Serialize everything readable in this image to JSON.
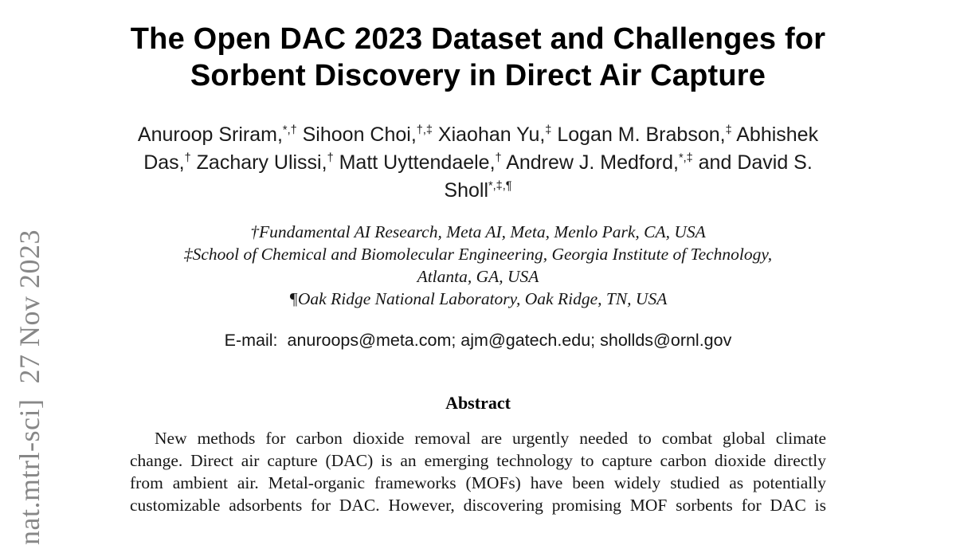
{
  "stamp": {
    "text": "nat.mtrl-sci]  27 Nov 2023",
    "color": "#878787"
  },
  "paper": {
    "title_lines": [
      "The Open DAC 2023 Dataset and Challenges for",
      "Sorbent Discovery in Direct Air Capture"
    ],
    "author_lines": [
      [
        {
          "t": "Anuroop Sriram,",
          "s": "*,†"
        },
        {
          "t": "Sihoon Choi,",
          "s": "†,‡"
        },
        {
          "t": "Xiaohan Yu,",
          "s": "‡"
        },
        {
          "t": "Logan M. Brabson,",
          "s": "‡"
        },
        {
          "t": "Abhishek",
          "s": ""
        }
      ],
      [
        {
          "t": "Das,",
          "s": "†"
        },
        {
          "t": "Zachary Ulissi,",
          "s": "†"
        },
        {
          "t": "Matt Uyttendaele,",
          "s": "†"
        },
        {
          "t": "Andrew J. Medford,",
          "s": "*,‡"
        },
        {
          "t": "and David S.",
          "s": ""
        }
      ],
      [
        {
          "t": "Sholl",
          "s": "*,‡,¶"
        }
      ]
    ],
    "affiliations": [
      "†Fundamental AI Research, Meta AI, Meta, Menlo Park, CA, USA",
      "‡School of Chemical and Biomolecular Engineering, Georgia Institute of Technology,",
      "Atlanta, GA, USA",
      "¶Oak Ridge National Laboratory, Oak Ridge, TN, USA"
    ],
    "email_line": "E-mail:  anuroops@meta.com; ajm@gatech.edu; shollds@ornl.gov",
    "abstract": {
      "heading": "Abstract",
      "lines": [
        "New methods for carbon dioxide removal are urgently needed to combat global climate",
        "change. Direct air capture (DAC) is an emerging technology to capture carbon dioxide directly",
        "from ambient air. Metal-organic frameworks (MOFs) have been widely studied as potentially",
        "customizable adsorbents for DAC. However, discovering promising MOF sorbents for DAC is"
      ]
    }
  }
}
